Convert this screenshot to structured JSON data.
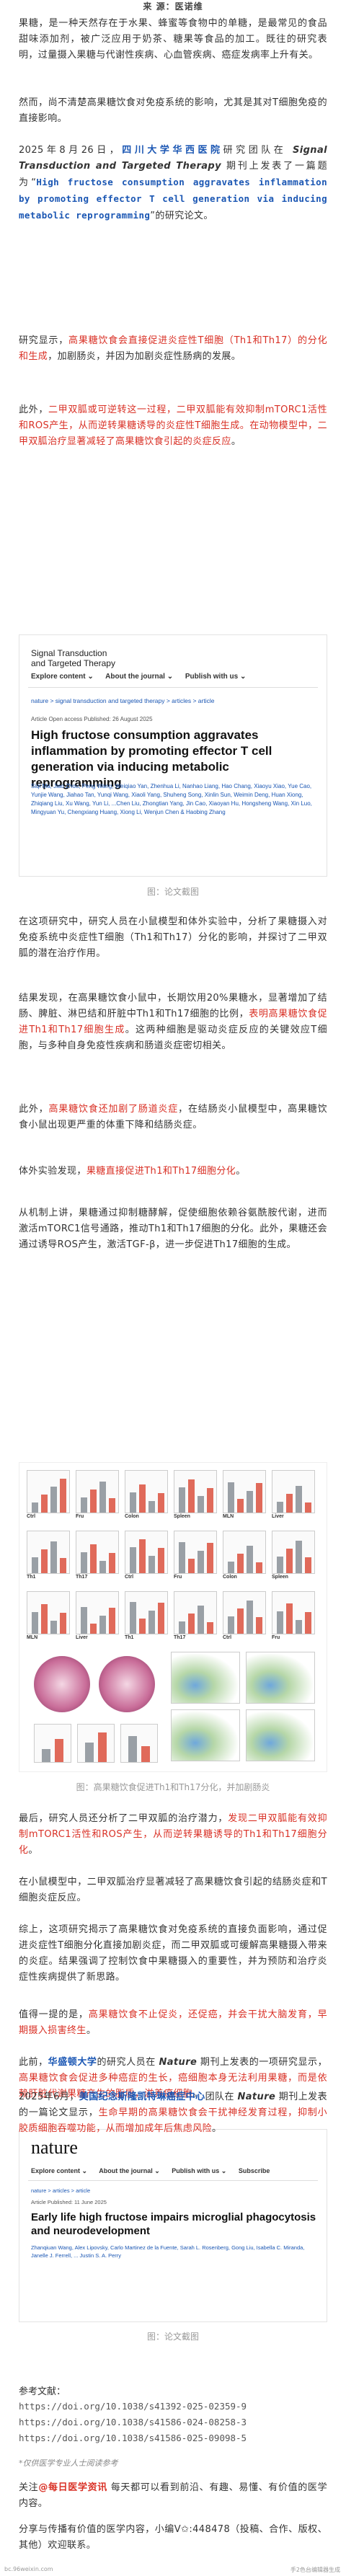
{
  "source_line": "来 源：医诺维",
  "paragraphs": {
    "p1": "果糖，是一种天然存在于水果、蜂蜜等食物中的单糖，是最常见的食品甜味添加剂，被广泛应用于奶茶、糖果等食品的加工。既往的研究表明，过量摄入果糖与代谢性疾病、心血管疾病、癌症发病率上升有关。",
    "p2": "然而，尚不清楚高果糖饮食对免疫系统的影响，尤其是其对T细胞免疫的直接影响。",
    "p3a": "2025年8月26日，",
    "p3_team": "四川大学华西医院",
    "p3b": "研究团队在 ",
    "p3_journal": "Signal Transduction and Targeted Therapy",
    "p3c": " 期刊上发表了一篇题为“",
    "p3_title": "High fructose consumption aggravates inflammation by promoting effector T cell generation via inducing metabolic reprogramming",
    "p3d": "”的研究论文。",
    "p4a": "研究显示，",
    "p4_red": "高果糖饮食会直接促进炎症性T细胞（Th1和Th17）的分化和生成",
    "p4b": "，加剧肠炎，并因为加剧炎症性肠病的发展。",
    "p5a": "此外，",
    "p5_red": "二甲双胍或可逆转这一过程，二甲双胍能有效抑制mTORC1活性和ROS产生，从而逆转果糖诱导的炎症性T细胞生成。在动物模型中，二甲双胍治疗显著减轻了高果糖饮食引起的炎症反应",
    "p5b": "。",
    "p6": "在这项研究中，研究人员在小鼠模型和体外实验中，分析了果糖摄入对免疫系统中炎症性T细胞（Th1和Th17）分化的影响，并探讨了二甲双胍的潜在治疗作用。",
    "p7a": "结果发现，在高果糖饮食小鼠中，长期饮用20%果糖水，显著增加了结肠、脾脏、淋巴结和肝脏中Th1和Th17细胞的比例，",
    "p7_red": "表明高果糖饮食促进Th1和Th17细胞生成",
    "p7b": "。这两种细胞是驱动炎症反应的关键效应T细胞，与多种自身免疫性疾病和肠道炎症密切相关。",
    "p8a": "此外，",
    "p8_red": "高果糖饮食还加剧了肠道炎症",
    "p8b": "，在结肠炎小鼠模型中，高果糖饮食小鼠出现更严重的体重下降和结肠炎症。",
    "p9a": "体外实验发现，",
    "p9_red": "果糖直接促进Th1和Th17细胞分化",
    "p9b": "。",
    "p10": "从机制上讲，果糖通过抑制糖酵解，促使细胞依赖谷氨酰胺代谢，进而激活mTORC1信号通路，推动Th1和Th17细胞的分化。此外，果糖还会通过诱导ROS产生，激活TGF-β，进一步促进Th17细胞的生成。",
    "p11a": "最后，研究人员还分析了二甲双胍的治疗潜力，",
    "p11_red": "发现二甲双胍能有效抑制mTORC1活性和ROS产生，从而逆转果糖诱导的Th1和Th17细胞分化",
    "p11b": "。",
    "p12": "在小鼠模型中，二甲双胍治疗显著减轻了高果糖饮食引起的结肠炎症和T细胞炎症反应。",
    "p13": "综上，这项研究揭示了高果糖饮食对免疫系统的直接负面影响，通过促进炎症性T细胞分化直接加剧炎症，而二甲双胍或可缓解高果糖摄入带来的炎症。结果强调了控制饮食中果糖摄入的重要性，并为预防和治疗炎症性疾病提供了新思路。",
    "p14a": "值得一提的是，",
    "p14_red": "高果糖饮食不止促炎，还促癌，并会干扰大脑发育，早期摄入损害终生",
    "p14b": "。",
    "p15a": "此前，",
    "p15_team": "华盛顿大学",
    "p15b": "的研究人员在 ",
    "p15_journal": "Nature",
    "p15c": " 期刊上发表的一项研究显示，",
    "p15_red": "高果糖饮食会促进多种癌症的生长，癌细胞本身无法利用果糖，而是依赖肝脏代谢果糖产生的脂质，滋养癌细胞",
    "p15b2": "。",
    "p15_red2": "并通过代谢转化，作为癌细胞可用的营养物质，从而间接促进肿瘤生长",
    "p15d": "。",
    "p16a": "2025年6月，",
    "p16_team": "美国纪念斯隆凯特琳癌症中心",
    "p16b": "团队在 ",
    "p16_journal": "Nature",
    "p16c": " 期刊上发表的一篇论文显示，",
    "p16_red": "生命早期的高果糖饮食会干扰神经发育过程，抑制小胶质细胞吞噬功能，从而增加成年后焦虑风险",
    "p16d": "。",
    "p17a": "关注",
    "p17_b": "@每日医学资讯",
    "p17b": "  每天都可以看到前沿、有趣、易懂、有价值的医学内容。",
    "p18": "分享与传播有价值的医学内容，小编V✩:448478（投稿、合作、版权、其他）欢迎联系。"
  },
  "captions": {
    "c1": "图：论文截图",
    "c2": "图：高果糖饮食促进Th1和Th17分化，并加剧肠炎",
    "c3": "图：论文截图"
  },
  "shot1": {
    "journal": "Signal Transduction\nand Targeted Therapy",
    "nav": [
      "Explore content ⌄",
      "About the journal ⌄",
      "Publish with us ⌄"
    ],
    "crumb": "nature > signal transduction and targeted therapy > articles > article",
    "tag": "Open Access",
    "meta": "Article  Open access  Published: 26 August 2025",
    "title": "High fructose consumption aggravates inflammation by promoting effector T cell generation via inducing metabolic reprogramming",
    "authors": "Siqi Ma, Jiao Zhou, Peng Wang, Weiqiao Yan, Zhenhua Li, Nanhao Liang, Hao Chang, Xiaoyu Xiao, Yue Cao, Yunjie Wang, Jiahao Tan, Yunqi Wang, Xiaoli Yang, Shuheng Song, Xinlin Sun, Weimin Deng, Huan Xiong, Zhiqiang Liu, Xu Wang, Yun Li, ...Chen Liu, Zhongtian Yang, Jin Cao, Xiaoyan Hu, Hongsheng Wang, Xin Luo, Mingyuan Yu, Chengxiang Huang, Xiong Li, Wenjun Chen & Haobing Zhang"
  },
  "shot2": {
    "logo": "nature",
    "nav": [
      "Explore content ⌄",
      "About the journal ⌄",
      "Publish with us ⌄",
      "Subscribe"
    ],
    "crumb": "nature > articles > article",
    "meta": "Article  Published: 11 June 2025",
    "title": "Early life high fructose impairs microglial phagocytosis and neurodevelopment",
    "authors": "Zhanqiuan Wang, Alex Lipovsky, Carlo Martinez de la Fuente, Sarah L. Rosenberg, Gong Liu, Isabella C. Miranda, Janelle J. Ferrell, ... Justin S. A. Perry"
  },
  "refs": {
    "head": "参考文献：",
    "r1": "https://doi.org/10.1038/s41392-025-02359-9",
    "r2": "https://doi.org/10.1038/s41586-024-08258-3",
    "r3": "https://doi.org/10.1038/s41586-025-09098-5"
  },
  "note": "*仅供医学专业人士阅读参考",
  "footer": {
    "left": "bc.96weixin.com",
    "right": "手2色台编辑器生成"
  },
  "figure_labels": [
    "Ctrl",
    "Fru",
    "Colon",
    "Spleen",
    "MLN",
    "Liver",
    "Th1",
    "Th17"
  ]
}
